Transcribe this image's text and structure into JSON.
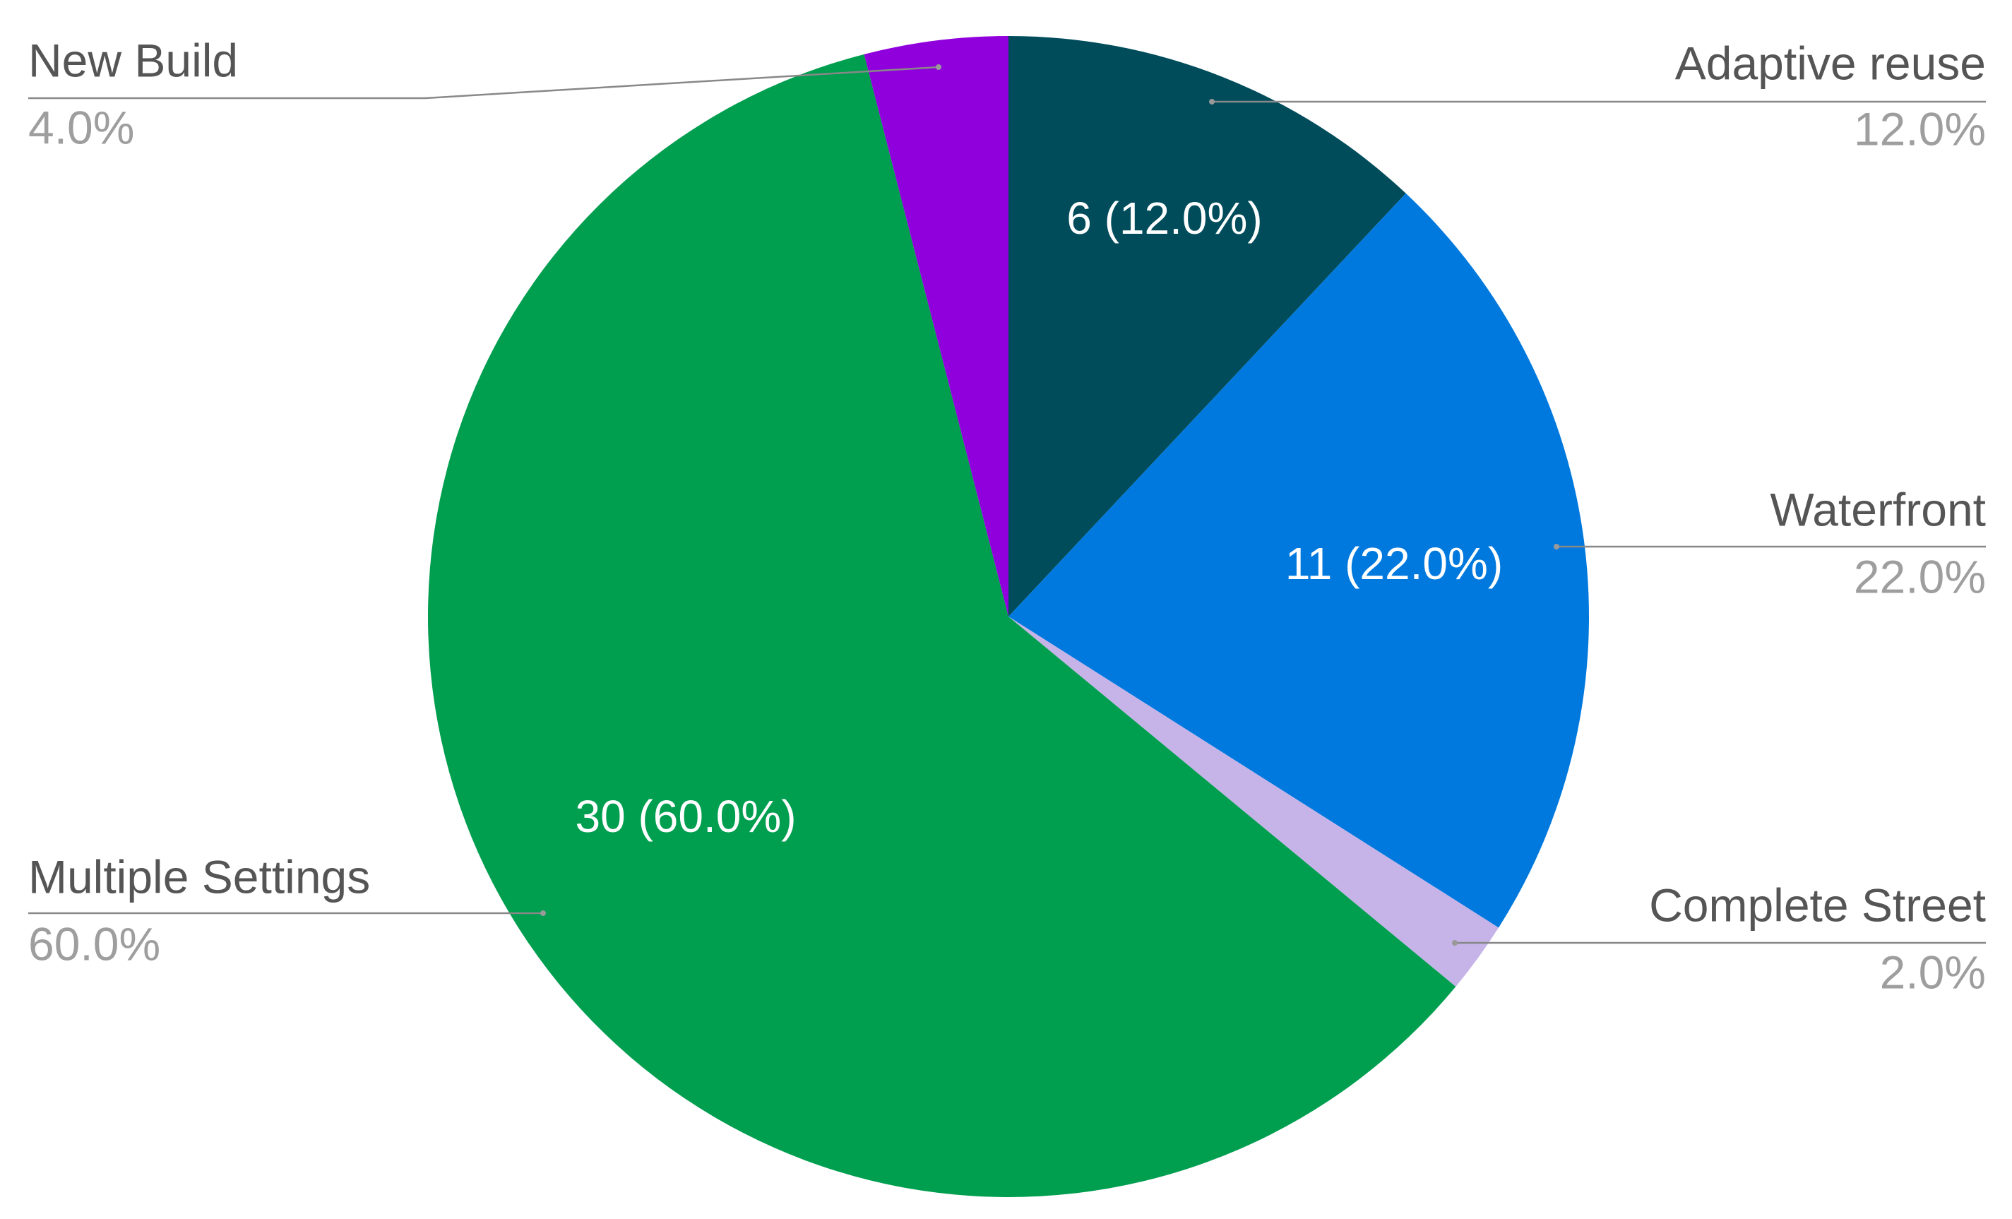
{
  "chart_data": {
    "type": "pie",
    "categories": [
      "Adaptive reuse",
      "Waterfront",
      "Complete Street",
      "Multiple Settings",
      "New Build"
    ],
    "values": [
      6,
      11,
      1,
      30,
      2
    ],
    "value_labels": [
      "6 (12.0%)",
      "11 (22.0%)",
      null,
      "30 (60.0%)",
      null
    ],
    "percent_labels": [
      "12.0%",
      "22.0%",
      "2.0%",
      "60.0%",
      "4.0%"
    ],
    "colors": [
      "#004c5b",
      "#0079de",
      "#c6b4e8",
      "#009e4f",
      "#9000dc"
    ]
  }
}
